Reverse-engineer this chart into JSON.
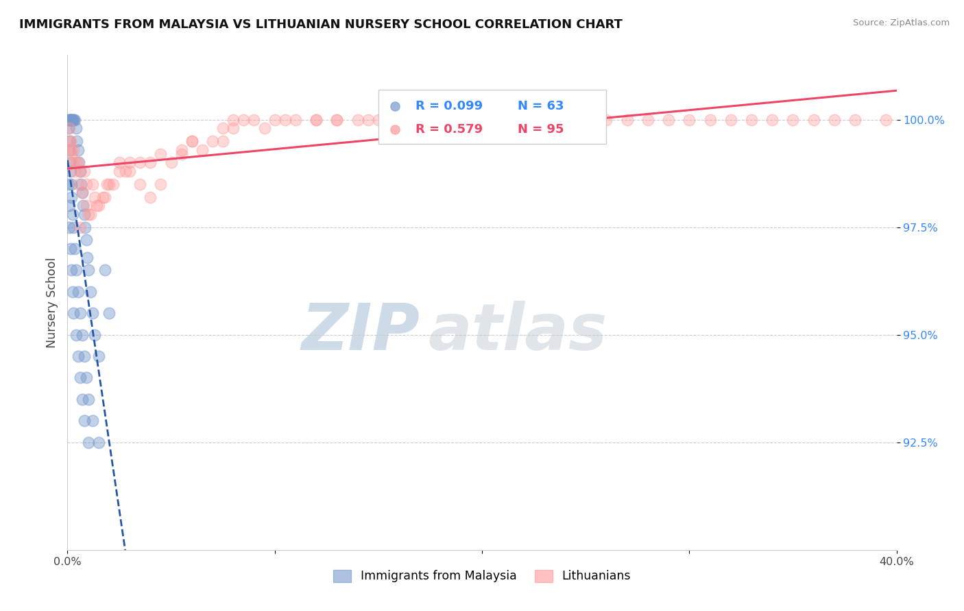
{
  "title": "IMMIGRANTS FROM MALAYSIA VS LITHUANIAN NURSERY SCHOOL CORRELATION CHART",
  "source": "Source: ZipAtlas.com",
  "ylabel": "Nursery School",
  "xmin": 0.0,
  "xmax": 40.0,
  "ymin": 90.0,
  "ymax": 101.5,
  "yticks": [
    92.5,
    95.0,
    97.5,
    100.0
  ],
  "ytick_labels": [
    "92.5%",
    "95.0%",
    "97.5%",
    "100.0%"
  ],
  "xtick_labels": [
    "0.0%",
    "40.0%"
  ],
  "legend_blue_r": "R = 0.099",
  "legend_blue_n": "N = 63",
  "legend_pink_r": "R = 0.579",
  "legend_pink_n": "N = 95",
  "legend_label_blue": "Immigrants from Malaysia",
  "legend_label_pink": "Lithuanians",
  "blue_color": "#7799CC",
  "pink_color": "#FF9999",
  "blue_trend_color": "#2255AA",
  "pink_trend_color": "#EE4466",
  "marker_size": 140,
  "blue_alpha": 0.45,
  "pink_alpha": 0.38,
  "blue_points_x": [
    0.05,
    0.08,
    0.1,
    0.12,
    0.15,
    0.18,
    0.2,
    0.22,
    0.25,
    0.28,
    0.3,
    0.35,
    0.4,
    0.45,
    0.5,
    0.55,
    0.6,
    0.65,
    0.7,
    0.75,
    0.8,
    0.85,
    0.9,
    0.95,
    1.0,
    1.1,
    1.2,
    1.3,
    1.5,
    1.8,
    0.05,
    0.08,
    0.1,
    0.12,
    0.15,
    0.18,
    0.2,
    0.25,
    0.3,
    0.35,
    0.4,
    0.5,
    0.6,
    0.7,
    0.8,
    0.9,
    1.0,
    1.2,
    1.5,
    2.0,
    0.05,
    0.08,
    0.1,
    0.15,
    0.2,
    0.25,
    0.3,
    0.4,
    0.5,
    0.6,
    0.7,
    0.8,
    1.0
  ],
  "blue_points_y": [
    100.0,
    100.0,
    100.0,
    100.0,
    100.0,
    100.0,
    100.0,
    100.0,
    100.0,
    100.0,
    100.0,
    100.0,
    99.8,
    99.5,
    99.3,
    99.0,
    98.8,
    98.5,
    98.3,
    98.0,
    97.8,
    97.5,
    97.2,
    96.8,
    96.5,
    96.0,
    95.5,
    95.0,
    94.5,
    96.5,
    99.8,
    99.5,
    99.3,
    99.0,
    98.8,
    98.5,
    98.2,
    97.8,
    97.5,
    97.0,
    96.5,
    96.0,
    95.5,
    95.0,
    94.5,
    94.0,
    93.5,
    93.0,
    92.5,
    95.5,
    98.5,
    98.0,
    97.5,
    97.0,
    96.5,
    96.0,
    95.5,
    95.0,
    94.5,
    94.0,
    93.5,
    93.0,
    92.5
  ],
  "pink_points_x": [
    0.08,
    0.12,
    0.18,
    0.25,
    0.35,
    0.5,
    0.7,
    0.9,
    1.1,
    1.4,
    1.7,
    2.0,
    2.5,
    3.0,
    3.5,
    4.0,
    4.5,
    5.0,
    5.5,
    6.0,
    6.5,
    7.0,
    7.5,
    8.0,
    8.5,
    9.0,
    10.0,
    11.0,
    12.0,
    13.0,
    14.0,
    15.0,
    16.0,
    17.0,
    18.0,
    19.0,
    20.0,
    21.0,
    22.0,
    23.0,
    24.0,
    25.0,
    26.0,
    27.0,
    28.0,
    30.0,
    32.0,
    34.0,
    36.0,
    38.0,
    0.15,
    0.3,
    0.5,
    0.8,
    1.2,
    1.8,
    2.5,
    3.5,
    4.5,
    6.0,
    8.0,
    10.5,
    13.0,
    15.5,
    18.5,
    21.5,
    24.5,
    0.2,
    0.4,
    0.6,
    0.9,
    1.3,
    1.9,
    2.8,
    4.0,
    5.5,
    7.5,
    9.5,
    12.0,
    14.5,
    17.0,
    19.5,
    22.0,
    25.0,
    29.0,
    31.0,
    33.0,
    35.0,
    37.0,
    39.5,
    0.6,
    1.0,
    1.5,
    2.2,
    3.0
  ],
  "pink_points_y": [
    99.8,
    99.5,
    99.3,
    99.0,
    98.8,
    98.5,
    98.3,
    98.0,
    97.8,
    98.0,
    98.2,
    98.5,
    99.0,
    98.8,
    98.5,
    98.2,
    98.5,
    99.0,
    99.2,
    99.5,
    99.3,
    99.5,
    99.8,
    100.0,
    100.0,
    100.0,
    100.0,
    100.0,
    100.0,
    100.0,
    100.0,
    100.0,
    100.0,
    100.0,
    100.0,
    100.0,
    100.0,
    100.0,
    100.0,
    100.0,
    100.0,
    100.0,
    100.0,
    100.0,
    100.0,
    100.0,
    100.0,
    100.0,
    100.0,
    100.0,
    99.5,
    99.3,
    99.0,
    98.8,
    98.5,
    98.2,
    98.8,
    99.0,
    99.2,
    99.5,
    99.8,
    100.0,
    100.0,
    100.0,
    100.0,
    100.0,
    100.0,
    99.2,
    99.0,
    98.8,
    98.5,
    98.2,
    98.5,
    98.8,
    99.0,
    99.3,
    99.5,
    99.8,
    100.0,
    100.0,
    100.0,
    100.0,
    100.0,
    100.0,
    100.0,
    100.0,
    100.0,
    100.0,
    100.0,
    100.0,
    97.5,
    97.8,
    98.0,
    98.5,
    99.0
  ],
  "watermark_zip": "ZIP",
  "watermark_atlas": "atlas",
  "background_color": "#ffffff"
}
